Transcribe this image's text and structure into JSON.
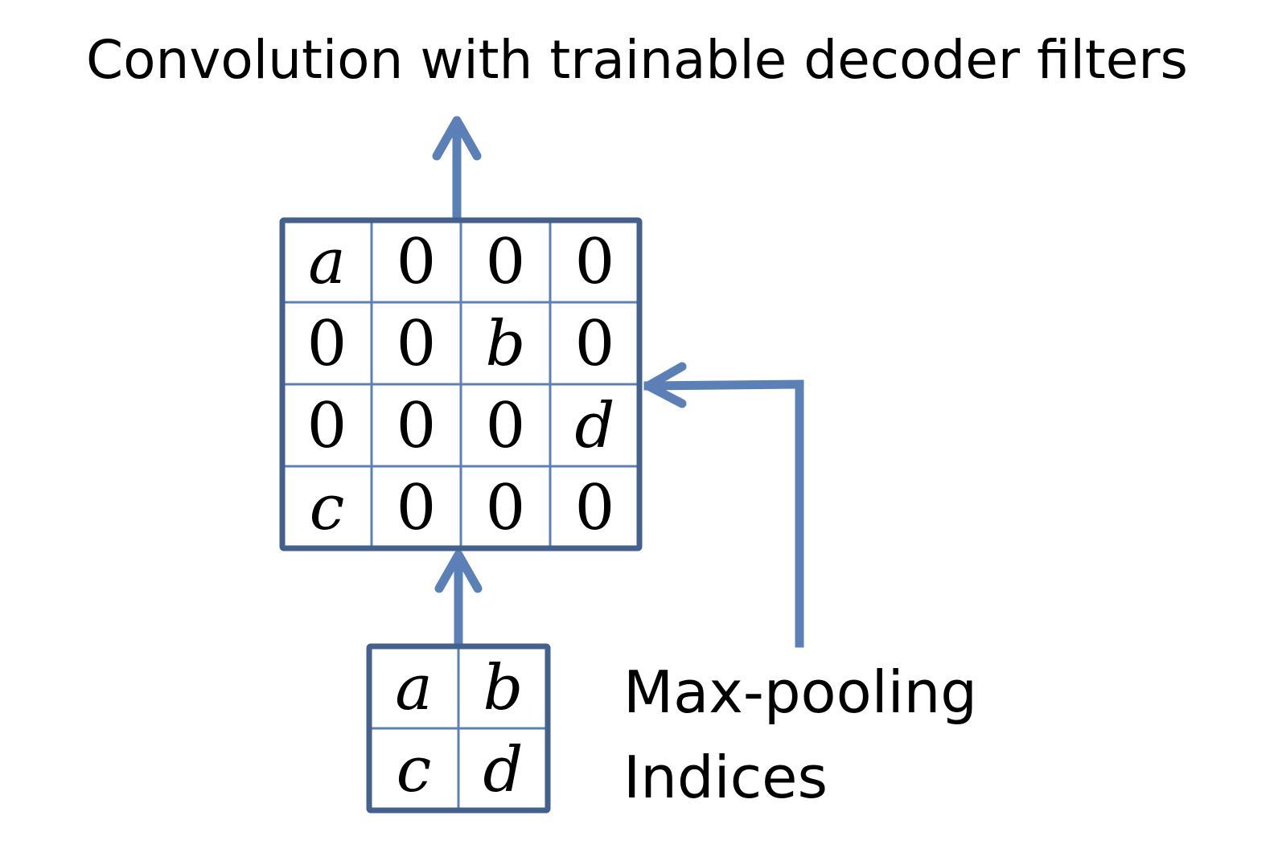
{
  "title": "Convolution with trainable decoder filters",
  "upsampled_grid": {
    "rows": [
      [
        "a",
        "0",
        "0",
        "0"
      ],
      [
        "0",
        "0",
        "b",
        "0"
      ],
      [
        "0",
        "0",
        "0",
        "d"
      ],
      [
        "c",
        "0",
        "0",
        "0"
      ]
    ]
  },
  "pooled_grid": {
    "rows": [
      [
        "a",
        "b"
      ],
      [
        "c",
        "d"
      ]
    ]
  },
  "indices_label": {
    "line1": "Max-pooling",
    "line2": "Indices"
  },
  "colors": {
    "arrow": "#5b80b8",
    "grid_border": "#44608e",
    "grid_inner": "#5b80b8"
  }
}
